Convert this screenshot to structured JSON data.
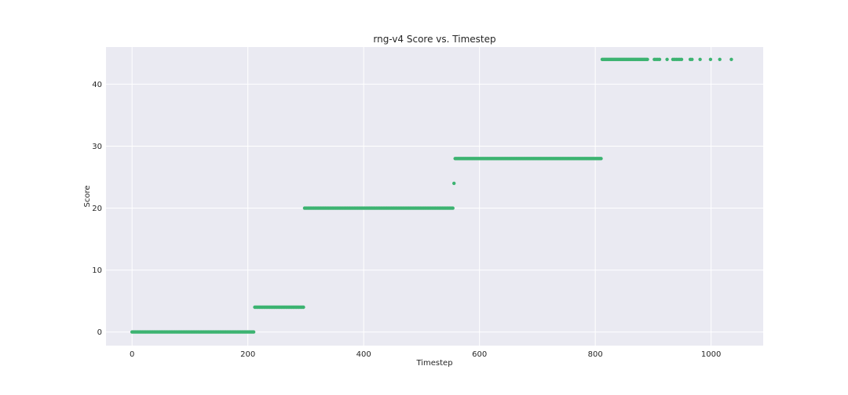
{
  "chart_data": {
    "type": "scatter",
    "title": "rng-v4 Score vs. Timestep",
    "xlabel": "Timestep",
    "ylabel": "Score",
    "xlim": [
      -45,
      1090
    ],
    "ylim": [
      -2.2,
      46
    ],
    "x_ticks": [
      0,
      200,
      400,
      600,
      800,
      1000
    ],
    "y_ticks": [
      0,
      10,
      20,
      30,
      40
    ],
    "grid": true,
    "marker_color": "#3cb371",
    "plot_background": "#eaeaf2",
    "segments": [
      {
        "score": 0,
        "x_start": 0,
        "x_end": 210,
        "step": 2
      },
      {
        "score": 4,
        "x_start": 212,
        "x_end": 297,
        "step": 2
      },
      {
        "score": 20,
        "x_start": 298,
        "x_end": 555,
        "step": 2
      },
      {
        "score": 28,
        "x_start": 558,
        "x_end": 810,
        "step": 2
      },
      {
        "score": 44,
        "x_start": 812,
        "x_end": 890,
        "step": 2
      }
    ],
    "points": [
      {
        "x": 556,
        "y": 24
      },
      {
        "x": 902,
        "y": 44
      },
      {
        "x": 905,
        "y": 44
      },
      {
        "x": 908,
        "y": 44
      },
      {
        "x": 911,
        "y": 44
      },
      {
        "x": 924,
        "y": 44
      },
      {
        "x": 934,
        "y": 44
      },
      {
        "x": 937,
        "y": 44
      },
      {
        "x": 940,
        "y": 44
      },
      {
        "x": 943,
        "y": 44
      },
      {
        "x": 946,
        "y": 44
      },
      {
        "x": 949,
        "y": 44
      },
      {
        "x": 964,
        "y": 44
      },
      {
        "x": 967,
        "y": 44
      },
      {
        "x": 981,
        "y": 44
      },
      {
        "x": 999,
        "y": 44
      },
      {
        "x": 1015,
        "y": 44
      },
      {
        "x": 1035,
        "y": 44
      }
    ]
  }
}
